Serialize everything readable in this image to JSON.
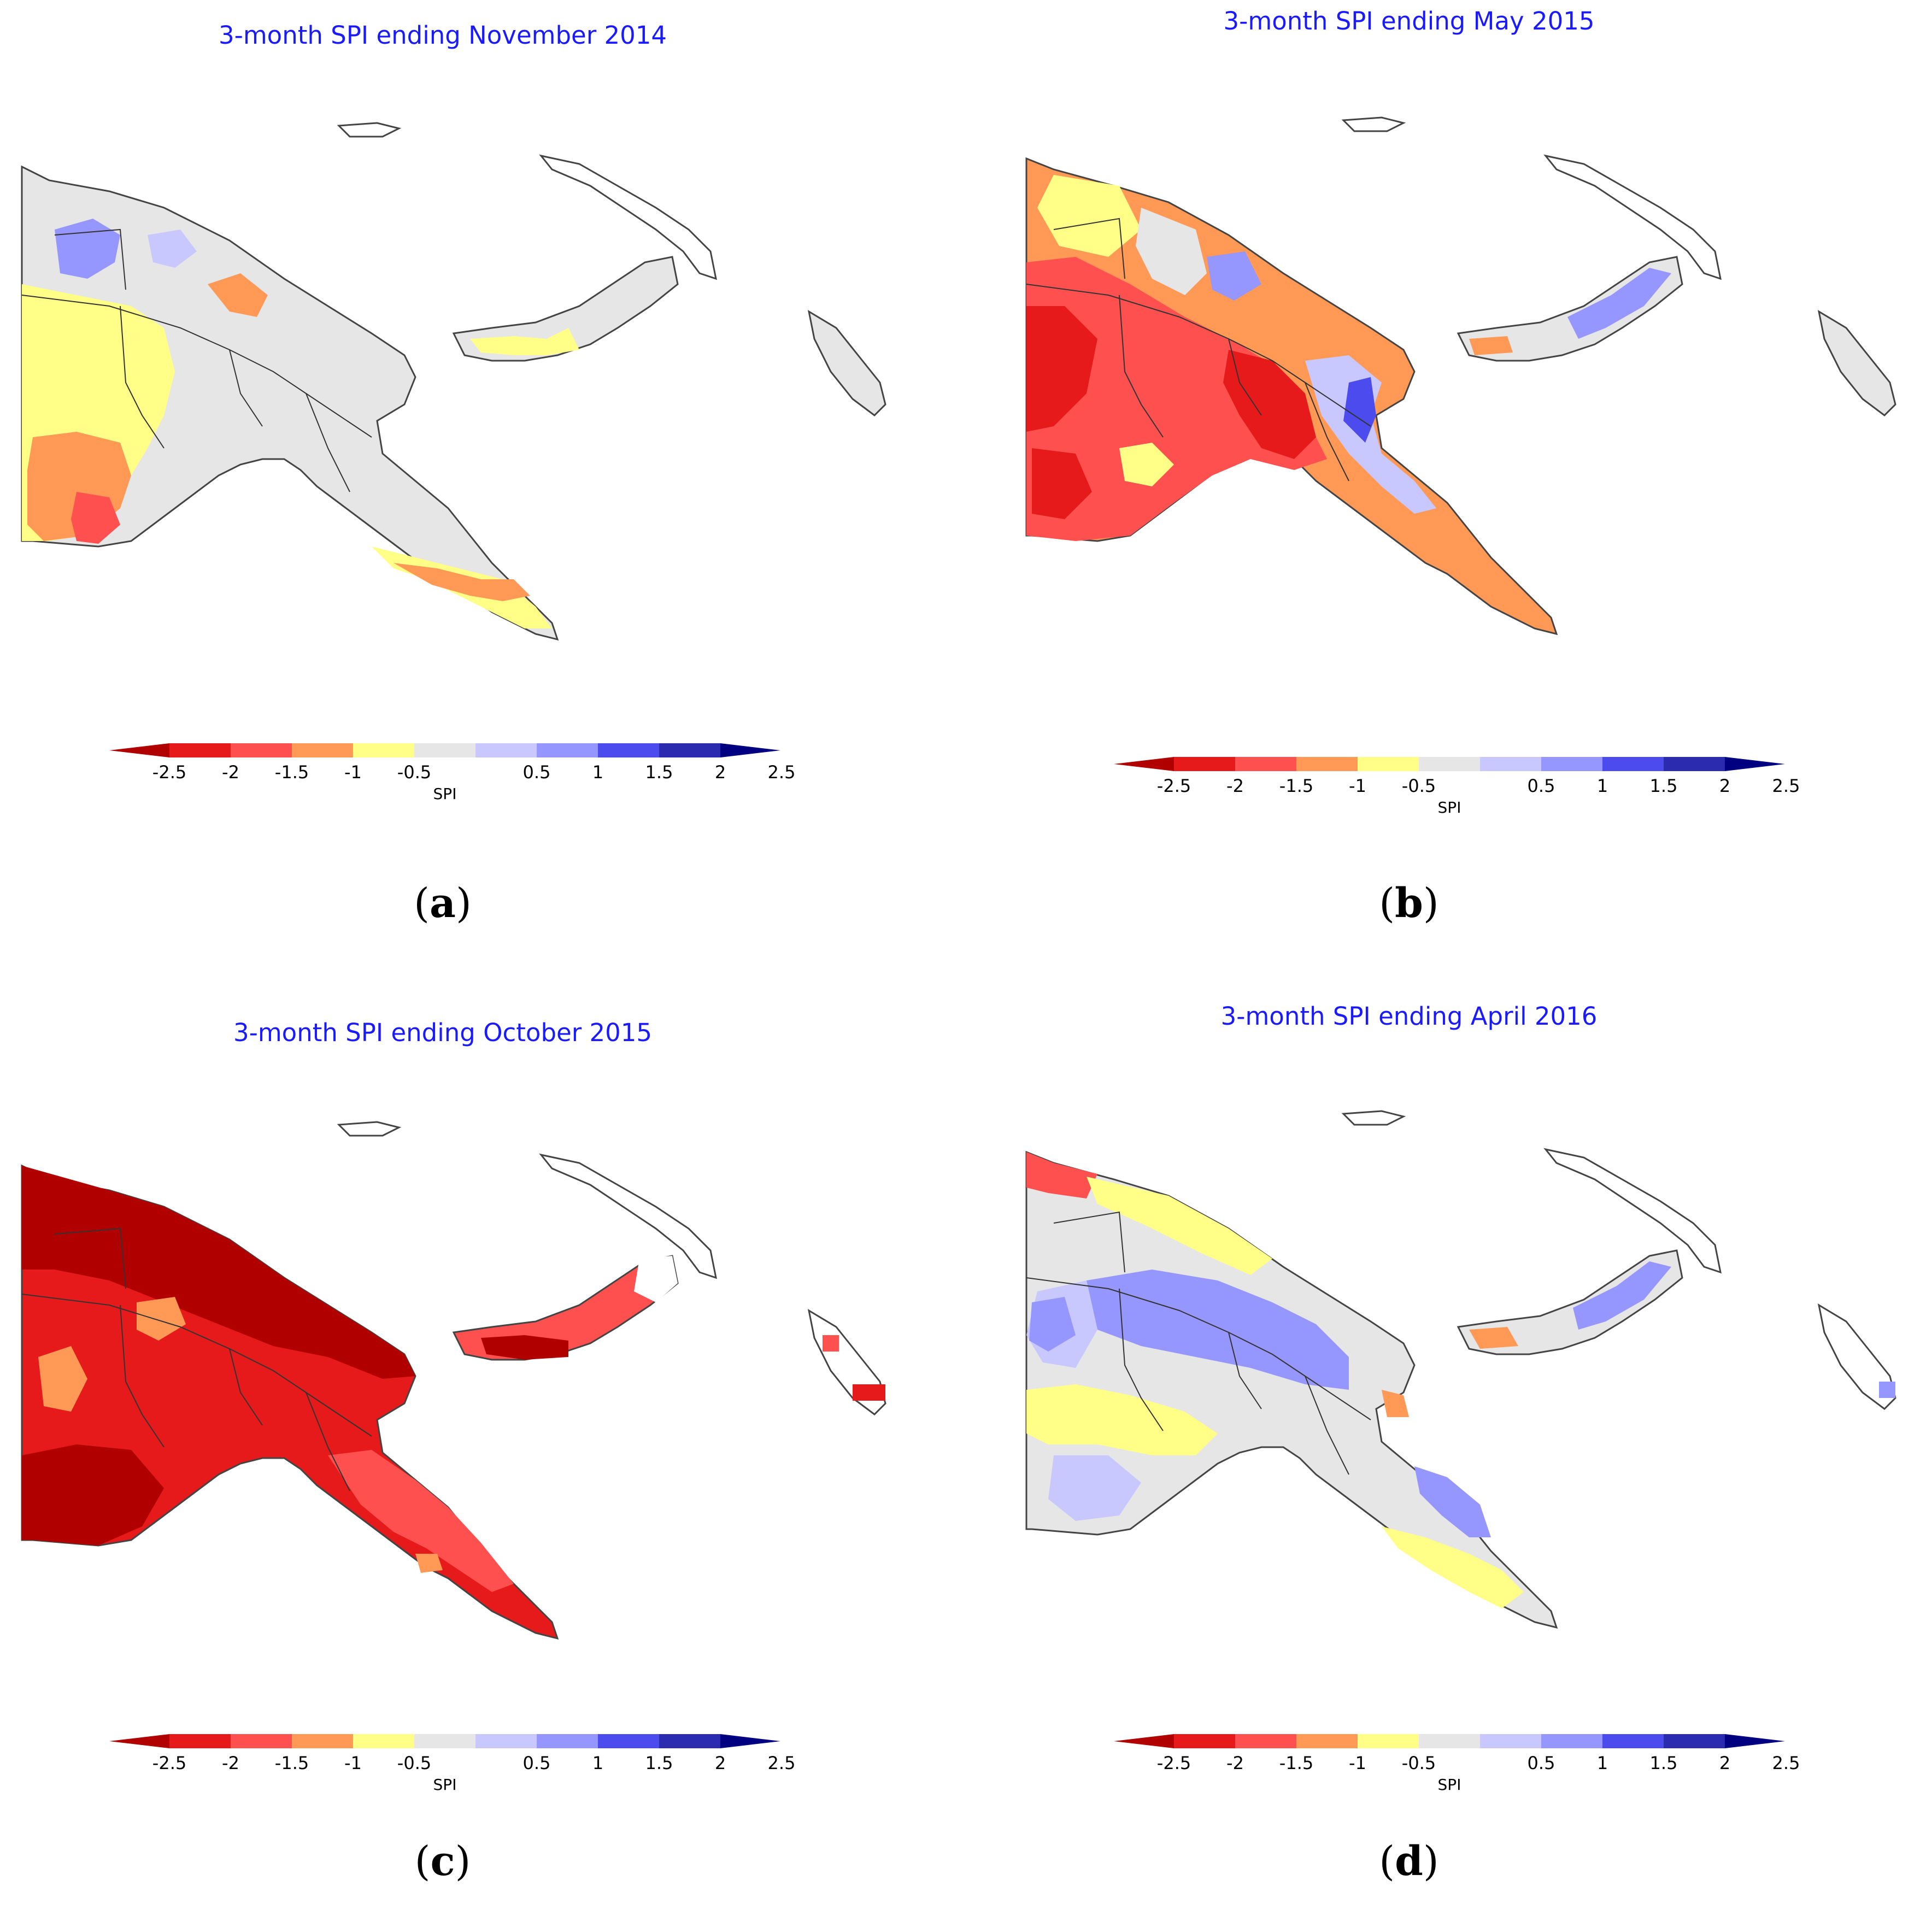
{
  "colorbar": {
    "ticks": [
      "-2.5",
      "-2",
      "-1.5",
      "-1",
      "-0.5",
      "0.5",
      "1",
      "1.5",
      "2",
      "2.5"
    ],
    "unit": "SPI",
    "colors": [
      "#b00000",
      "#e61a1a",
      "#ff5050",
      "#ff9955",
      "#ffff88",
      "#e6e6e6",
      "#c8c8ff",
      "#9696ff",
      "#4b4bee",
      "#2b2bb0",
      "#000080"
    ]
  },
  "panels": [
    {
      "id": "a",
      "title": "3-month SPI ending November 2014",
      "label_open": "(",
      "label_letter": "a",
      "label_close": ")",
      "dominant": [
        "#ffff88",
        "#e6e6e6",
        "#ff9955"
      ]
    },
    {
      "id": "b",
      "title": "3-month SPI ending May 2015",
      "label_open": "(",
      "label_letter": "b",
      "label_close": ")",
      "dominant": [
        "#ff5050",
        "#e61a1a",
        "#ff9955",
        "#4b4bee"
      ]
    },
    {
      "id": "c",
      "title": "3-month SPI ending October 2015",
      "label_open": "(",
      "label_letter": "c",
      "label_close": ")",
      "dominant": [
        "#b00000",
        "#e61a1a",
        "#ff5050"
      ]
    },
    {
      "id": "d",
      "title": "3-month SPI ending April 2016",
      "label_open": "(",
      "label_letter": "d",
      "label_close": ")",
      "dominant": [
        "#9696ff",
        "#e6e6e6",
        "#ffff88",
        "#c8c8ff"
      ]
    }
  ]
}
